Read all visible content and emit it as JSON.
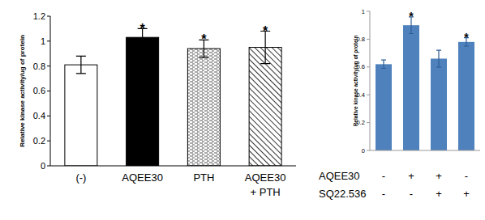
{
  "chart_data": [
    {
      "type": "bar",
      "y_label": "Relative kinase activity/ug of protein",
      "categories": [
        "(-)",
        "AQEE30",
        "PTH",
        "AQEE30\n+ PTH"
      ],
      "values": [
        0.81,
        1.03,
        0.94,
        0.95
      ],
      "errors": [
        0.07,
        0.07,
        0.07,
        0.13
      ],
      "significance": [
        null,
        "*",
        "*",
        "*"
      ],
      "colors": [
        "#ffffff",
        "#000000",
        "#ffffff",
        "#ffffff"
      ],
      "ylim": [
        0,
        1.2
      ],
      "yticks": [
        0,
        0.2,
        0.4,
        0.6,
        0.8,
        1,
        1.2
      ],
      "grid": false
    },
    {
      "type": "bar",
      "y_label": "Relative kinase activity/ug of protein",
      "categories": [
        null,
        null,
        null,
        null
      ],
      "values": [
        0.62,
        0.9,
        0.66,
        0.78
      ],
      "errors": [
        0.03,
        0.06,
        0.06,
        0.03
      ],
      "significance": [
        null,
        "*",
        null,
        "*"
      ],
      "color": "#4f81bd",
      "ylim": [
        0,
        1
      ],
      "yticks": [
        0,
        0.2,
        0.4,
        0.6,
        0.8,
        1
      ],
      "grid": false,
      "treatment_table": [
        {
          "name": "AQEE30",
          "values": [
            "-",
            "+",
            "+",
            "-"
          ]
        },
        {
          "name": "SQ22.536",
          "values": [
            "-",
            "-",
            "+",
            "+"
          ]
        }
      ]
    }
  ]
}
